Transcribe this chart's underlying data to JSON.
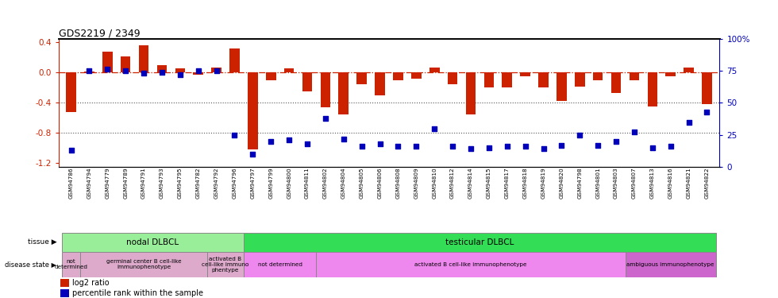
{
  "title": "GDS2219 / 2349",
  "samples": [
    "GSM94786",
    "GSM94794",
    "GSM94779",
    "GSM94789",
    "GSM94791",
    "GSM94793",
    "GSM94795",
    "GSM94782",
    "GSM94792",
    "GSM94796",
    "GSM94797",
    "GSM94799",
    "GSM94800",
    "GSM94811",
    "GSM94802",
    "GSM94804",
    "GSM94805",
    "GSM94806",
    "GSM94808",
    "GSM94809",
    "GSM94810",
    "GSM94812",
    "GSM94814",
    "GSM94815",
    "GSM94817",
    "GSM94818",
    "GSM94819",
    "GSM94820",
    "GSM94798",
    "GSM94801",
    "GSM94803",
    "GSM94807",
    "GSM94813",
    "GSM94816",
    "GSM94821",
    "GSM94822"
  ],
  "log2_ratio": [
    -0.52,
    0.02,
    0.28,
    0.22,
    0.36,
    0.1,
    0.06,
    -0.03,
    0.07,
    0.32,
    -1.02,
    -0.1,
    0.06,
    -0.25,
    -0.46,
    -0.55,
    -0.15,
    -0.3,
    -0.1,
    -0.08,
    0.07,
    -0.15,
    -0.55,
    -0.2,
    -0.2,
    -0.05,
    -0.2,
    -0.37,
    -0.18,
    -0.1,
    -0.27,
    -0.1,
    -0.45,
    -0.05,
    0.07,
    -0.42
  ],
  "percentile": [
    13,
    75,
    76,
    75,
    73,
    74,
    72,
    75,
    75,
    25,
    10,
    20,
    21,
    18,
    38,
    22,
    16,
    18,
    16,
    16,
    30,
    16,
    14,
    15,
    16,
    16,
    14,
    17,
    25,
    17,
    20,
    27,
    15,
    16,
    35,
    43
  ],
  "tissue_groups": [
    {
      "label": "nodal DLBCL",
      "start": 0,
      "end": 9,
      "color": "#99EE99"
    },
    {
      "label": "testicular DLBCL",
      "start": 10,
      "end": 35,
      "color": "#33DD55"
    }
  ],
  "disease_groups": [
    {
      "label": "not\ndetermined",
      "start": 0,
      "end": 0,
      "color": "#DDAACC"
    },
    {
      "label": "germinal center B cell-like\nimmunophenotype",
      "start": 1,
      "end": 7,
      "color": "#DDAACC"
    },
    {
      "label": "activated B\ncell-like immuno\nphentype",
      "start": 8,
      "end": 9,
      "color": "#DDAACC"
    },
    {
      "label": "not determined",
      "start": 10,
      "end": 13,
      "color": "#EE88EE"
    },
    {
      "label": "activated B cell-like immunophenotype",
      "start": 14,
      "end": 30,
      "color": "#EE88EE"
    },
    {
      "label": "ambiguous immunophenotype",
      "start": 31,
      "end": 35,
      "color": "#CC66CC"
    }
  ],
  "ylim_left": [
    -1.25,
    0.45
  ],
  "ylim_right": [
    -312.5,
    100
  ],
  "yticks_left": [
    -1.2,
    -0.8,
    -0.4,
    0.0,
    0.4
  ],
  "yticks_right_vals": [
    0,
    25,
    50,
    75,
    100
  ],
  "yticks_right_pos": [
    -1.25,
    -0.8,
    -0.4,
    0.0,
    0.4
  ],
  "bar_color": "#CC2200",
  "dot_color": "#0000BB",
  "zero_line_color": "#CC2200",
  "dot_line_color1": "#555555",
  "background_color": "#ffffff"
}
